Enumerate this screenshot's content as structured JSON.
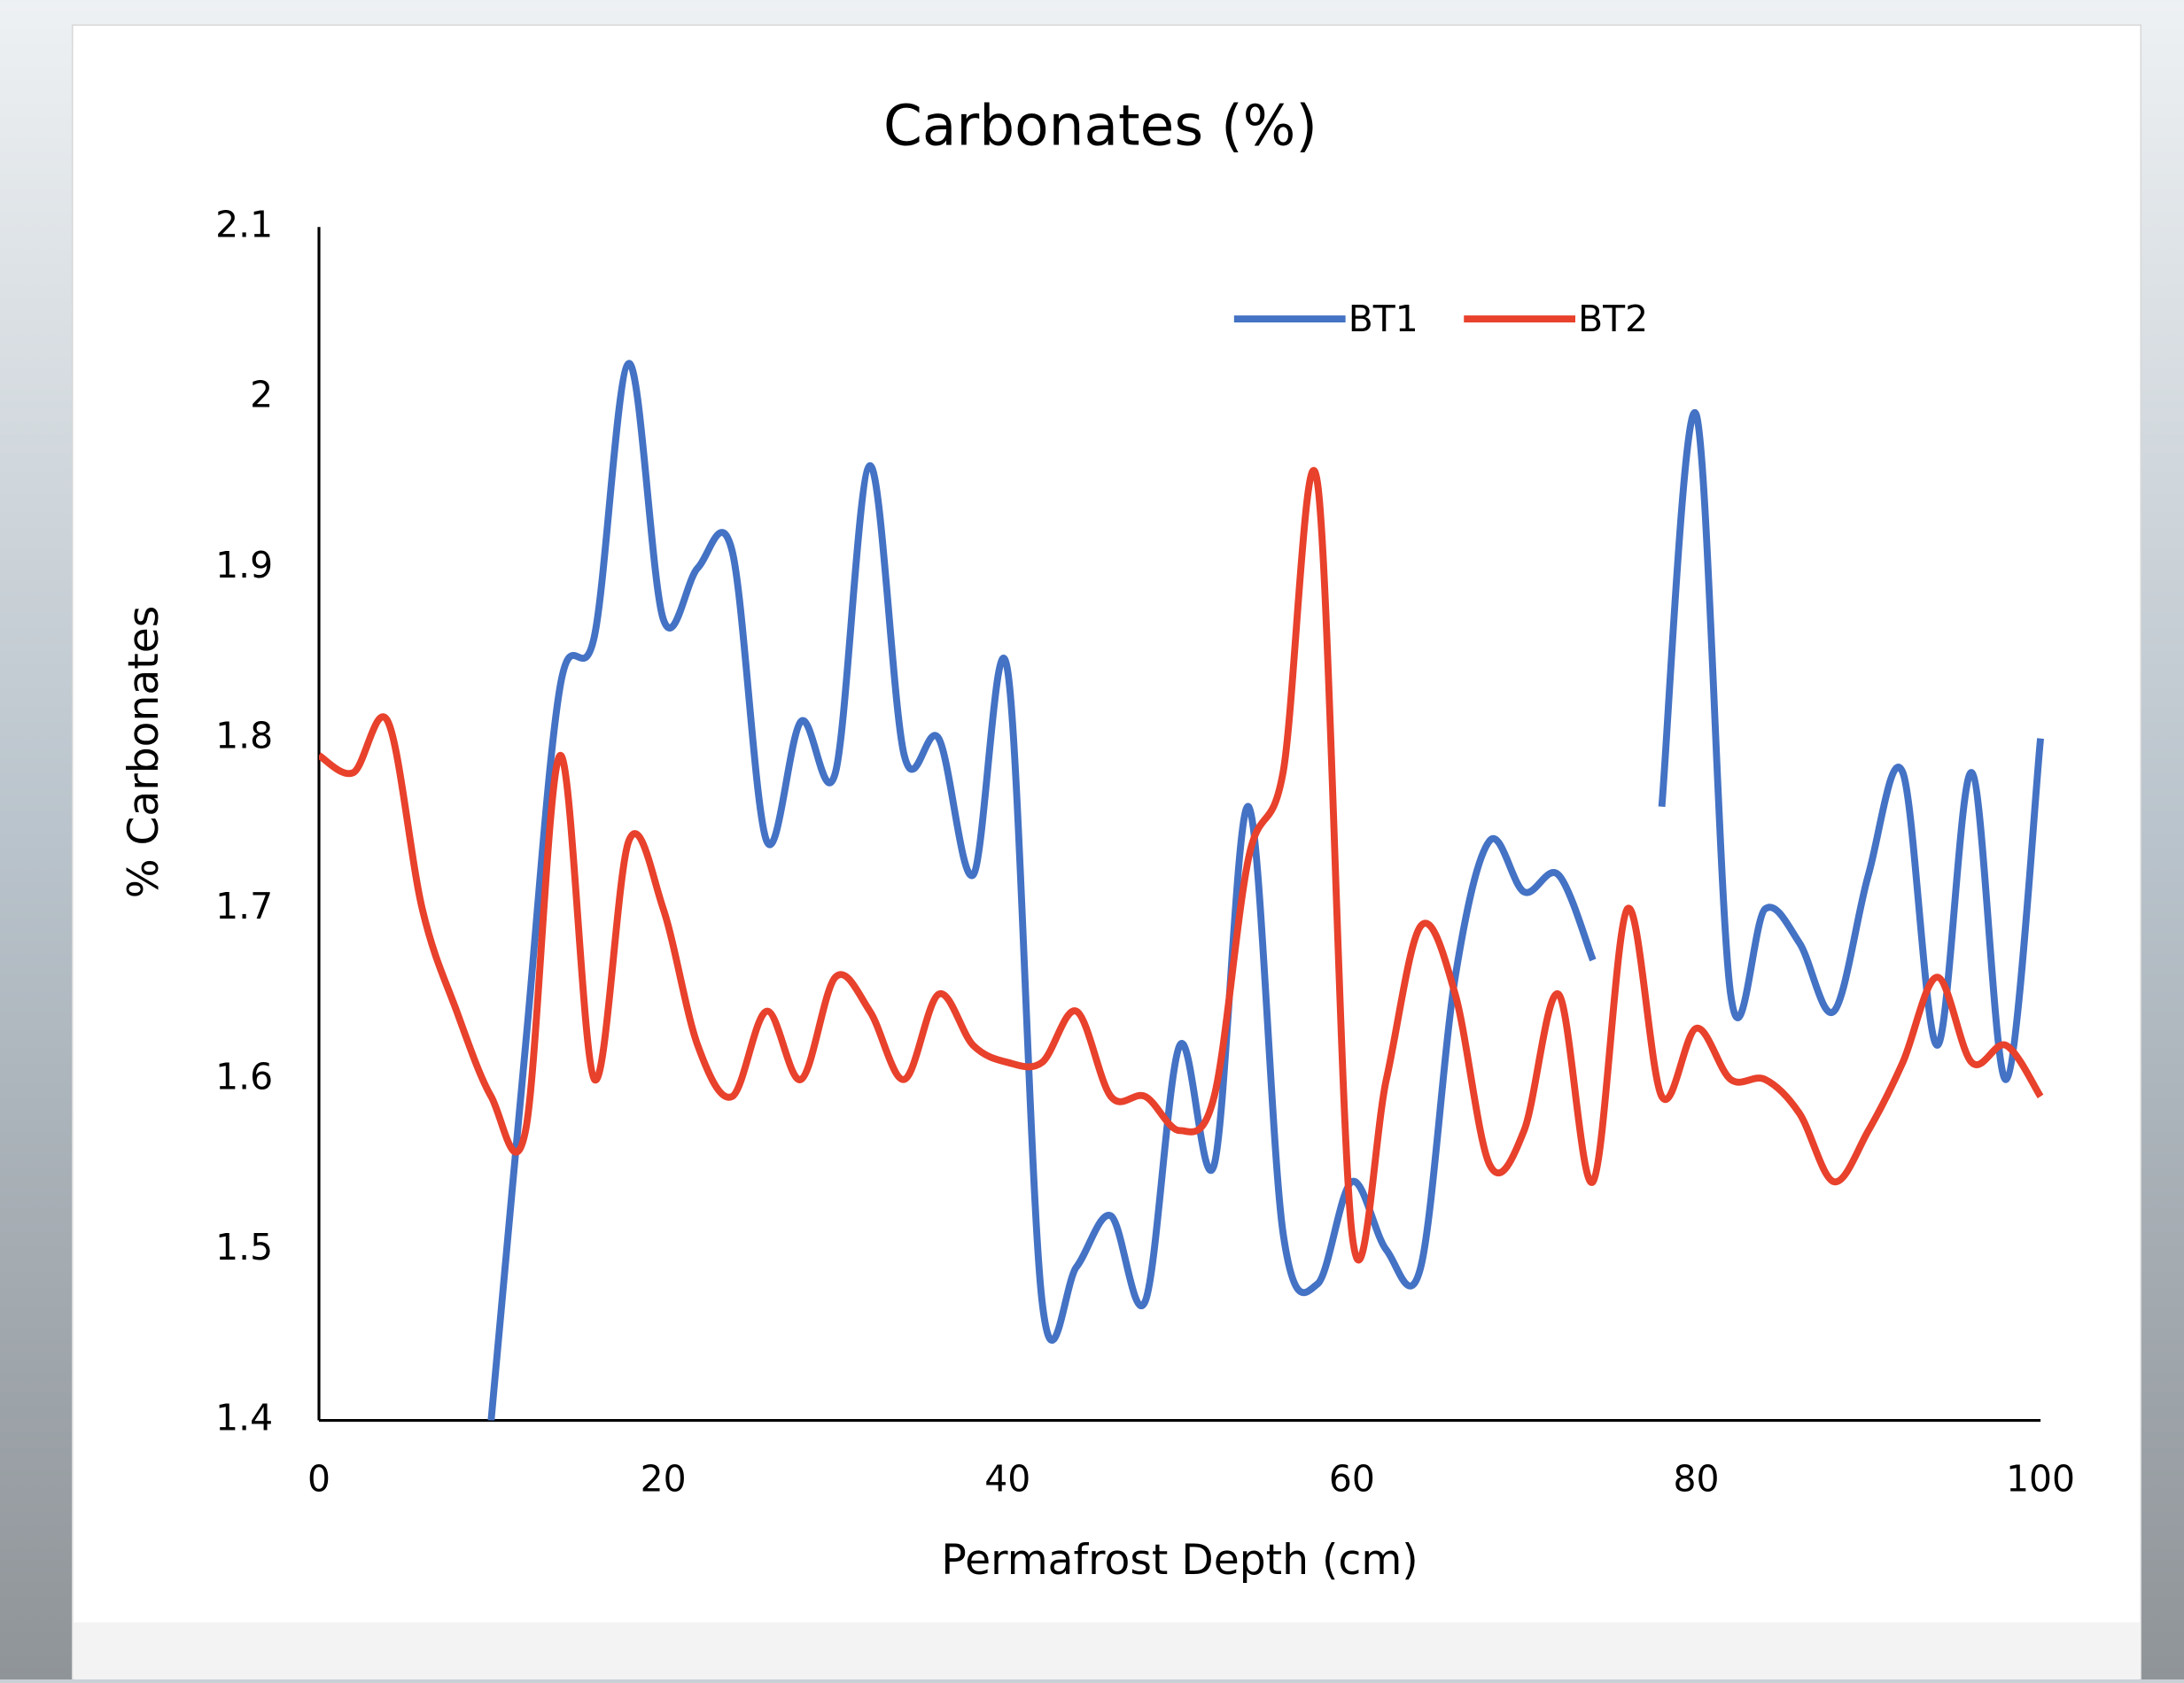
{
  "chart_data": {
    "type": "line",
    "title": "Carbonates (%)",
    "x_label": "Permafrost Depth (cm)",
    "y_label": "% Carbonates",
    "x": [
      0,
      2,
      4,
      6,
      8,
      10,
      12,
      14,
      16,
      18,
      20,
      22,
      24,
      26,
      28,
      30,
      32,
      34,
      36,
      38,
      40,
      42,
      44,
      46,
      48,
      50,
      52,
      54,
      56,
      58,
      60,
      62,
      64,
      66,
      68,
      70,
      72,
      74,
      76,
      78,
      80,
      82,
      84,
      86,
      88,
      90,
      92,
      94,
      96,
      98,
      100
    ],
    "series": [
      {
        "name": "BT1",
        "color": "#4472c4",
        "values": [
          null,
          null,
          null,
          null,
          null,
          1.4,
          1.62,
          1.83,
          1.86,
          2.02,
          1.87,
          1.9,
          1.91,
          1.74,
          1.81,
          1.78,
          1.96,
          1.79,
          1.8,
          1.72,
          1.84,
          1.47,
          1.49,
          1.52,
          1.47,
          1.62,
          1.55,
          1.76,
          1.51,
          1.48,
          1.54,
          1.5,
          1.49,
          1.66,
          1.74,
          1.71,
          1.72,
          1.67,
          null,
          1.76,
          1.99,
          1.65,
          1.7,
          1.68,
          1.64,
          1.72,
          1.78,
          1.62,
          1.78,
          1.6,
          1.8
        ]
      },
      {
        "name": "BT2",
        "color": "#e8412c",
        "values": [
          1.79,
          1.78,
          1.81,
          1.7,
          1.64,
          1.59,
          1.57,
          1.79,
          1.6,
          1.74,
          1.7,
          1.62,
          1.59,
          1.64,
          1.6,
          1.66,
          1.64,
          1.6,
          1.65,
          1.62,
          1.61,
          1.61,
          1.64,
          1.59,
          1.59,
          1.57,
          1.59,
          1.73,
          1.78,
          1.95,
          1.51,
          1.6,
          1.69,
          1.65,
          1.55,
          1.57,
          1.65,
          1.54,
          1.7,
          1.59,
          1.63,
          1.6,
          1.6,
          1.58,
          1.54,
          1.57,
          1.61,
          1.66,
          1.61,
          1.62,
          1.59
        ]
      }
    ],
    "xlim": [
      0,
      100
    ],
    "xticks": [
      0,
      20,
      40,
      60,
      80,
      100
    ],
    "ylim": [
      1.4,
      2.1
    ],
    "yticks": [
      1.4,
      1.5,
      1.6,
      1.7,
      1.8,
      1.9,
      2,
      2.1
    ],
    "grid": false,
    "legend": "top",
    "smooth": true
  }
}
